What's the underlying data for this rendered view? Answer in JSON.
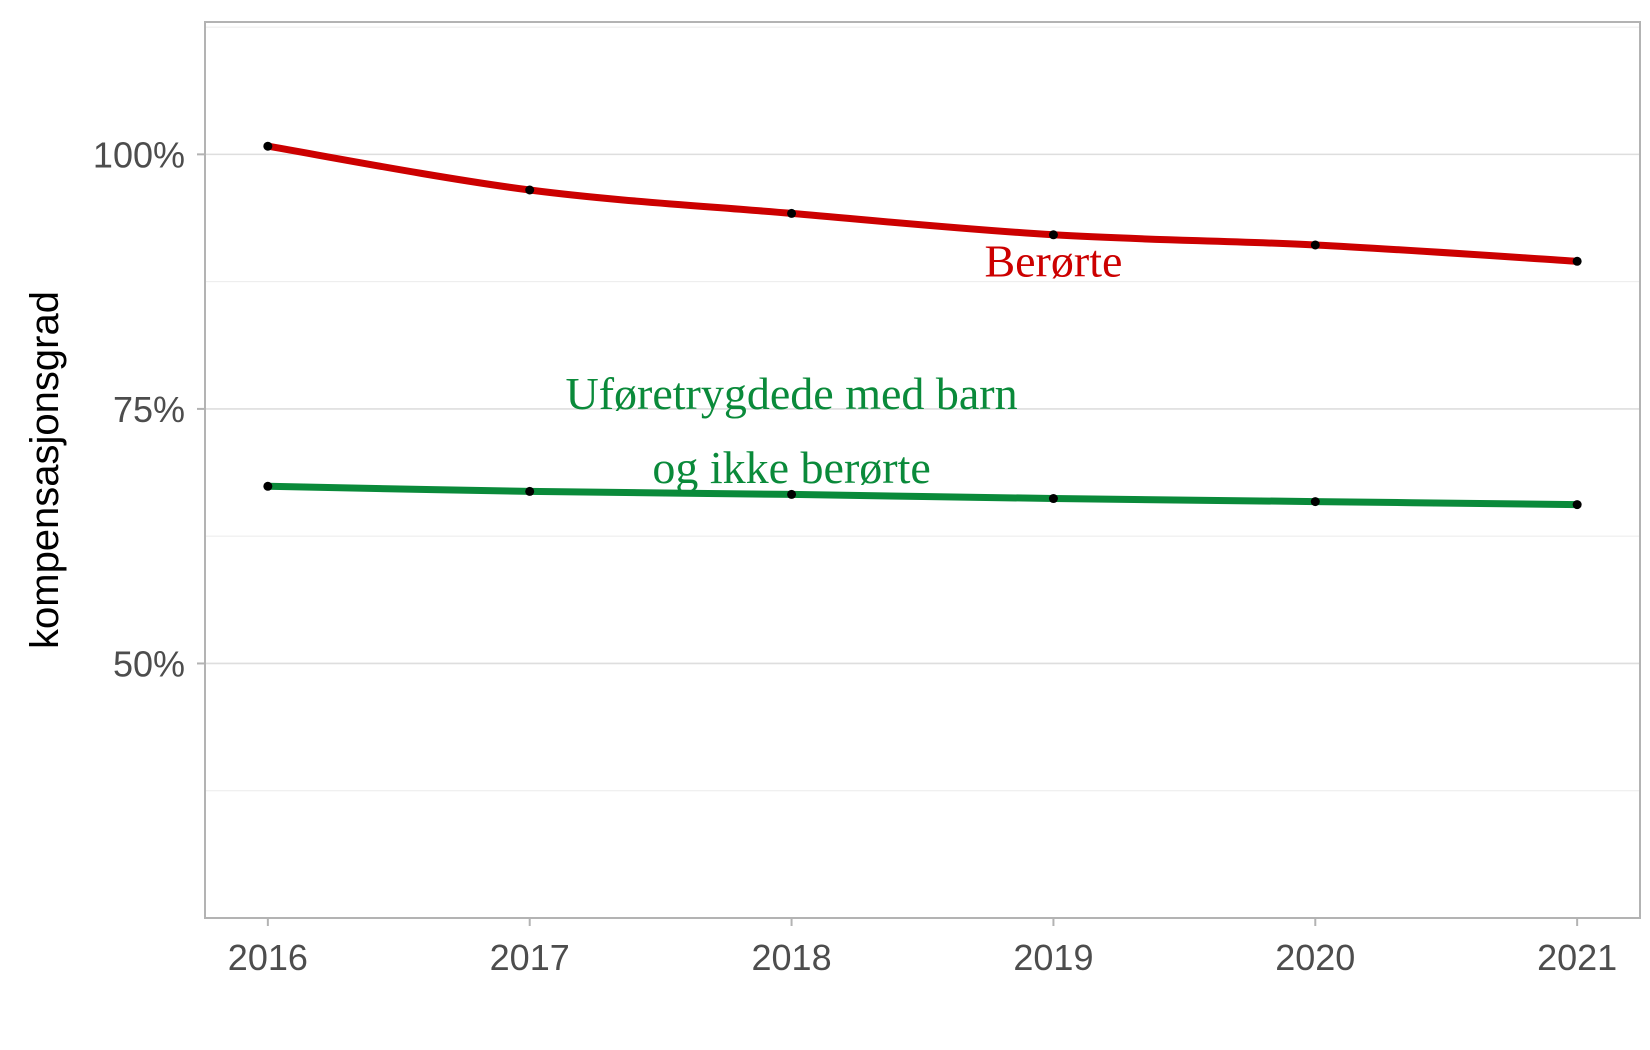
{
  "chart_data": {
    "type": "line",
    "x": [
      2016,
      2017,
      2018,
      2019,
      2020,
      2021
    ],
    "xlabel": "",
    "ylabel": "kompensasjonsgrad",
    "ylim": [
      0.25,
      1.13
    ],
    "yticks": [
      0.5,
      0.75,
      1.0
    ],
    "ytick_labels": [
      "50%",
      "75%",
      "100%"
    ],
    "xtick_labels": [
      "2016",
      "2017",
      "2018",
      "2019",
      "2020",
      "2021"
    ],
    "grid": true,
    "legend": "none",
    "series": [
      {
        "name": "Berørte",
        "color": "#cc0000",
        "values": [
          1.008,
          0.965,
          0.942,
          0.921,
          0.911,
          0.895
        ]
      },
      {
        "name": "Uføretrygdede med barn og ikke berørte",
        "color": "#0a8a3a",
        "values": [
          0.674,
          0.669,
          0.666,
          0.662,
          0.659,
          0.656
        ]
      }
    ],
    "annotations": [
      {
        "series": 0,
        "lines": [
          "Berørte"
        ],
        "x": 2019,
        "y": 0.88
      },
      {
        "series": 1,
        "lines": [
          "Uføretrygdede med barn",
          "og ikke berørte"
        ],
        "x": 2018,
        "y": 0.75
      }
    ]
  }
}
